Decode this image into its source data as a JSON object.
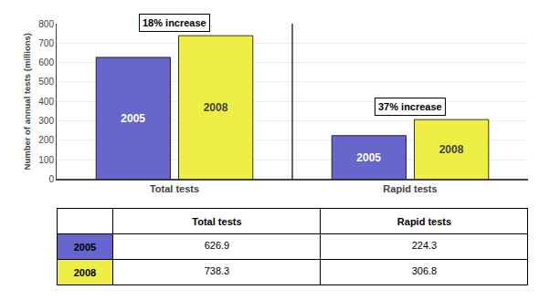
{
  "chart_data": {
    "type": "bar",
    "ylabel": "Number of annual tests (millions)",
    "categories": [
      "Total tests",
      "Rapid tests"
    ],
    "series": [
      {
        "name": "2005",
        "color": "#6666cc",
        "values": [
          626.9,
          224.3
        ]
      },
      {
        "name": "2008",
        "color": "#eeee44",
        "values": [
          738.3,
          306.8
        ]
      }
    ],
    "ylim": [
      0,
      800
    ],
    "yticks": [
      0,
      100,
      200,
      300,
      400,
      500,
      600,
      700,
      800
    ],
    "grid": true,
    "annotations": [
      {
        "text": "18% increase",
        "category": "Total tests"
      },
      {
        "text": "37% increase",
        "category": "Rapid tests"
      }
    ]
  }
}
